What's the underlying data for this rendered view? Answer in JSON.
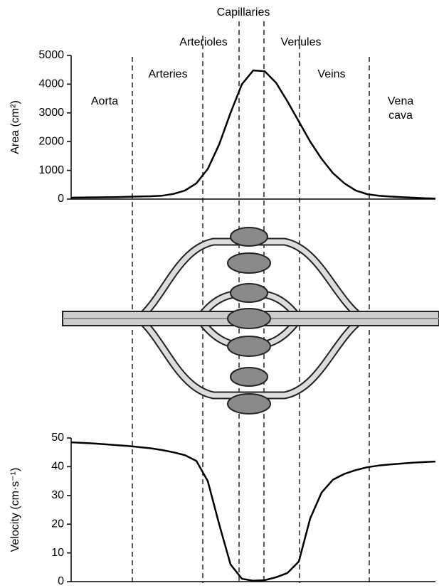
{
  "regions": [
    "Capillaries",
    "Arterioles",
    "Venules",
    "Arteries",
    "Veins",
    "Aorta",
    "Vena cava"
  ],
  "chart_data": [
    {
      "type": "line",
      "ylabel": "Area (cm²)",
      "categories": [
        null,
        null,
        null,
        null,
        null,
        null,
        null,
        null,
        null,
        null,
        null,
        null,
        null,
        null,
        null,
        null,
        null,
        null,
        null,
        null,
        null,
        null,
        null,
        null,
        null,
        null,
        null,
        null,
        null,
        null,
        null,
        null,
        null
      ],
      "values": [
        50,
        55,
        60,
        65,
        70,
        80,
        90,
        100,
        120,
        180,
        300,
        550,
        1050,
        1900,
        3000,
        4000,
        4480,
        4450,
        4050,
        3400,
        2700,
        2000,
        1400,
        900,
        550,
        300,
        170,
        120,
        90,
        70,
        50,
        30,
        20
      ],
      "color": "#000000",
      "ylim": [
        0,
        5000
      ],
      "yticks": [
        0,
        1000,
        2000,
        3000,
        4000,
        5000
      ]
    },
    {
      "type": "line",
      "ylabel": "Velocity (cm·s⁻¹)",
      "categories": [
        null,
        null,
        null,
        null,
        null,
        null,
        null,
        null,
        null,
        null,
        null,
        null,
        null,
        null,
        null,
        null,
        null,
        null,
        null,
        null,
        null,
        null,
        null,
        null,
        null,
        null,
        null,
        null,
        null,
        null,
        null,
        null,
        null
      ],
      "values": [
        48.5,
        48.3,
        48.1,
        47.8,
        47.5,
        47.2,
        46.8,
        46.4,
        45.8,
        45,
        44,
        42,
        35,
        20,
        6,
        1,
        0.3,
        0.5,
        1.5,
        3,
        7,
        22,
        31,
        35.5,
        37.5,
        38.8,
        39.8,
        40.4,
        40.8,
        41.1,
        41.4,
        41.6,
        41.8
      ],
      "color": "#000000",
      "ylim": [
        0,
        50
      ],
      "yticks": [
        0,
        10,
        20,
        30,
        40,
        50
      ]
    }
  ]
}
